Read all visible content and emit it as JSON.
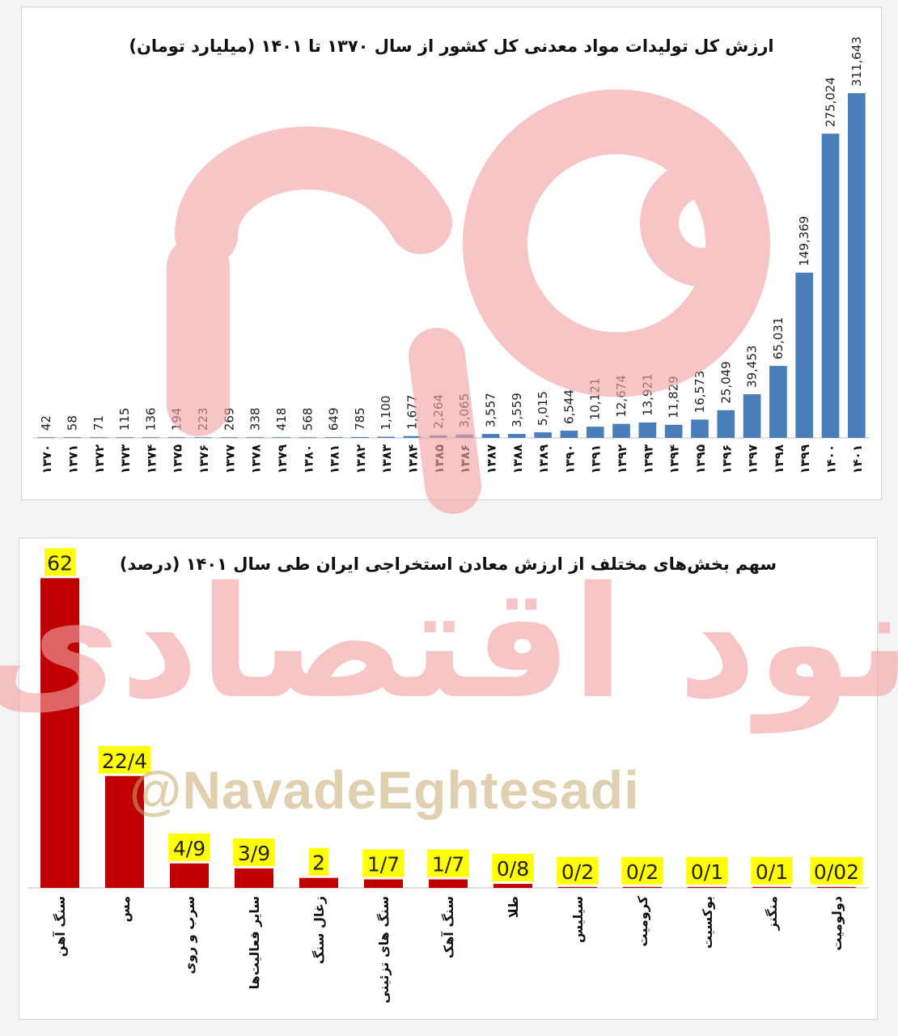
{
  "chart_data": [
    {
      "type": "bar",
      "title": "ارزش کل تولیدات مواد معدنی کل کشور از سال ۱۳۷۰ تا ۱۴۰۱ (میلیارد تومان)",
      "categories": [
        "۱۳۷۰",
        "۱۳۷۱",
        "۱۳۷۲",
        "۱۳۷۳",
        "۱۳۷۴",
        "۱۳۷۵",
        "۱۳۷۶",
        "۱۳۷۷",
        "۱۳۷۸",
        "۱۳۷۹",
        "۱۳۸۰",
        "۱۳۸۱",
        "۱۳۸۲",
        "۱۳۸۳",
        "۱۳۸۴",
        "۱۳۸۵",
        "۱۳۸۶",
        "۱۳۸۷",
        "۱۳۸۸",
        "۱۳۸۹",
        "۱۳۹۰",
        "۱۳۹۱",
        "۱۳۹۲",
        "۱۳۹۳",
        "۱۳۹۴",
        "۱۳۹۵",
        "۱۳۹۶",
        "۱۳۹۷",
        "۱۳۹۸",
        "۱۳۹۹",
        "۱۴۰۰",
        "۱۴۰۱"
      ],
      "values": [
        42,
        58,
        71,
        115,
        136,
        194,
        223,
        269,
        338,
        418,
        568,
        649,
        785,
        1100,
        1677,
        2264,
        3065,
        3557,
        3559,
        5015,
        6544,
        10121,
        12674,
        13921,
        11829,
        16573,
        25049,
        39453,
        65031,
        149369,
        275024,
        311643
      ],
      "labels": [
        "42",
        "58",
        "71",
        "115",
        "136",
        "194",
        "223",
        "269",
        "338",
        "418",
        "568",
        "649",
        "785",
        "1,100",
        "1,677",
        "2,264",
        "3,065",
        "3,557",
        "3,559",
        "5,015",
        "6,544",
        "10,121",
        "12,674",
        "13,921",
        "11,829",
        "16,573",
        "25,049",
        "39,453",
        "65,031",
        "149,369",
        "275,024",
        "311,643"
      ],
      "ylim": [
        0,
        360000
      ],
      "color": "#4a7ebb"
    },
    {
      "type": "bar",
      "title": "سهم بخش‌های مختلف از ارزش معادن استخراجی ایران طی سال ۱۴۰۱ (درصد)",
      "categories": [
        "سنگ آهن",
        "مس",
        "سرب و روی",
        "سایر فعالیت‌ها",
        "زغال سنگ",
        "سنگ های تزئینی",
        "سنگ آهک",
        "طلا",
        "سیلیس",
        "کرومیت",
        "بوکسیت",
        "منگنز",
        "دولومیت"
      ],
      "values": [
        62,
        22.4,
        4.9,
        3.9,
        2,
        1.7,
        1.7,
        0.8,
        0.2,
        0.2,
        0.1,
        0.1,
        0.02
      ],
      "labels": [
        "62",
        "22/4",
        "4/9",
        "3/9",
        "2",
        "1/7",
        "1/7",
        "0/8",
        "0/2",
        "0/2",
        "0/1",
        "0/1",
        "0/02"
      ],
      "ylim": [
        0,
        70
      ],
      "color": "#c00000",
      "label_bg": "#ffff00"
    }
  ],
  "watermark": {
    "logo_text": "نود",
    "brand_text": "نود اقتصادی",
    "handle": "@NavadeEghtesadi",
    "color": "#f0a8a8"
  }
}
